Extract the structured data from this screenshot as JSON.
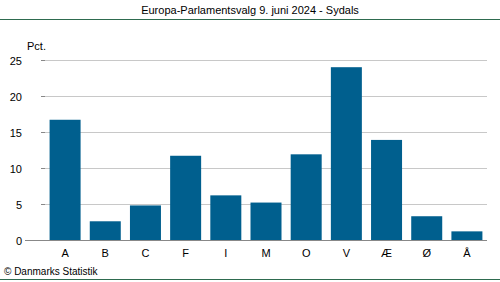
{
  "chart_data": {
    "type": "bar",
    "title": "Europa-Parlamentsvalg 9. juni 2024 - Sydals",
    "y_label": "Pct.",
    "source": "© Danmarks Statistik",
    "categories": [
      "A",
      "B",
      "C",
      "F",
      "I",
      "M",
      "O",
      "V",
      "Æ",
      "Ø",
      "Å"
    ],
    "values": [
      16.7,
      2.6,
      4.8,
      11.7,
      6.2,
      5.2,
      11.9,
      24.0,
      13.9,
      3.3,
      1.2
    ],
    "color": "#005f8e",
    "ylim": [
      0,
      25
    ],
    "yticks": [
      0,
      5,
      10,
      15,
      20,
      25
    ],
    "grid": true
  }
}
